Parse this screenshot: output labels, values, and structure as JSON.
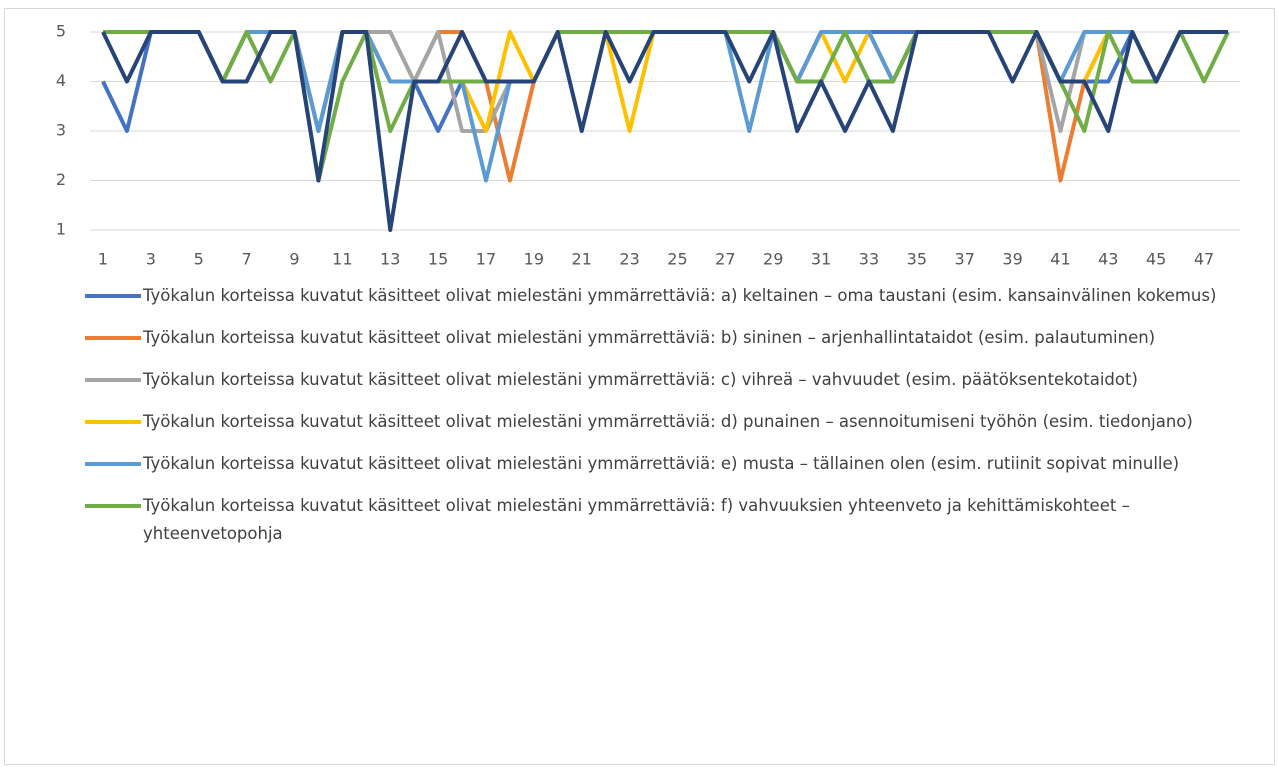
{
  "chart_data": {
    "type": "line",
    "x": [
      1,
      2,
      3,
      4,
      5,
      6,
      7,
      8,
      9,
      10,
      11,
      12,
      13,
      14,
      15,
      16,
      17,
      18,
      19,
      20,
      21,
      22,
      23,
      24,
      25,
      26,
      27,
      28,
      29,
      30,
      31,
      32,
      33,
      34,
      35,
      36,
      37,
      38,
      39,
      40,
      41,
      42,
      43,
      44,
      45,
      46,
      47,
      48
    ],
    "xlim": [
      1,
      48
    ],
    "xticks": [
      1,
      3,
      5,
      7,
      9,
      11,
      13,
      15,
      17,
      19,
      21,
      23,
      25,
      27,
      29,
      31,
      33,
      35,
      37,
      39,
      41,
      43,
      45,
      47
    ],
    "ylim": [
      1,
      5
    ],
    "yticks": [
      1,
      2,
      3,
      4,
      5
    ],
    "grid": true,
    "legend": "bottom",
    "series": [
      {
        "name": "Työkalun korteissa kuvatut käsitteet olivat mielestäni ymmärrettäviä: a) keltainen – oma taustani (esim. kansainvälinen kokemus)",
        "color": "#4472c4",
        "values": [
          4,
          3,
          5,
          5,
          5,
          4,
          4,
          5,
          5,
          3,
          5,
          5,
          4,
          4,
          3,
          4,
          4,
          4,
          4,
          5,
          5,
          5,
          5,
          5,
          5,
          5,
          5,
          5,
          5,
          4,
          5,
          5,
          5,
          5,
          5,
          5,
          5,
          5,
          5,
          5,
          4,
          4,
          4,
          5,
          4,
          5,
          5,
          5
        ]
      },
      {
        "name": "Työkalun korteissa kuvatut käsitteet olivat mielestäni ymmärrettäviä: b) sininen – arjenhallintataidot (esim. palautuminen)",
        "color": "#ed7d31",
        "values": [
          5,
          5,
          5,
          5,
          5,
          4,
          5,
          5,
          5,
          3,
          5,
          5,
          4,
          4,
          5,
          5,
          4,
          2,
          4,
          5,
          5,
          5,
          5,
          5,
          5,
          5,
          5,
          5,
          5,
          4,
          5,
          5,
          5,
          4,
          5,
          5,
          5,
          5,
          5,
          5,
          2,
          4,
          5,
          5,
          4,
          5,
          5,
          5
        ]
      },
      {
        "name": " Työkalun korteissa kuvatut käsitteet olivat mielestäni ymmärrettäviä: c) vihreä – vahvuudet (esim. päätöksentekotaidot)",
        "color": "#a5a5a5",
        "values": [
          5,
          5,
          5,
          5,
          5,
          4,
          5,
          5,
          5,
          3,
          5,
          5,
          5,
          4,
          5,
          3,
          3,
          4,
          4,
          5,
          5,
          5,
          5,
          5,
          5,
          5,
          5,
          5,
          5,
          4,
          5,
          5,
          5,
          4,
          5,
          5,
          5,
          5,
          5,
          5,
          3,
          5,
          5,
          5,
          4,
          5,
          5,
          5
        ]
      },
      {
        "name": "Työkalun korteissa kuvatut käsitteet olivat mielestäni ymmärrettäviä: d) punainen – asennoitumiseni työhön (esim. tiedonjano)",
        "color": "#ffc000",
        "values": [
          5,
          5,
          5,
          5,
          5,
          4,
          5,
          5,
          5,
          3,
          5,
          5,
          4,
          4,
          4,
          4,
          3,
          5,
          4,
          5,
          5,
          5,
          3,
          5,
          5,
          5,
          5,
          5,
          5,
          4,
          5,
          4,
          5,
          4,
          5,
          5,
          5,
          5,
          5,
          5,
          4,
          4,
          5,
          5,
          4,
          5,
          5,
          5
        ]
      },
      {
        "name": "Työkalun korteissa kuvatut käsitteet olivat mielestäni ymmärrettäviä: e) musta – tällainen olen (esim. rutiinit sopivat minulle)",
        "color": "#5b9bd5",
        "values": [
          5,
          5,
          5,
          5,
          5,
          4,
          5,
          5,
          5,
          3,
          5,
          5,
          4,
          4,
          4,
          4,
          2,
          4,
          4,
          5,
          5,
          5,
          5,
          5,
          5,
          5,
          5,
          3,
          5,
          4,
          5,
          5,
          5,
          4,
          5,
          5,
          5,
          5,
          5,
          5,
          4,
          5,
          5,
          5,
          4,
          5,
          5,
          5
        ]
      },
      {
        "name": "Työkalun korteissa kuvatut käsitteet olivat mielestäni ymmärrettäviä: f) vahvuuksien yhteenveto ja kehittämiskohteet – yhteenvetopohja",
        "color": "#70ad47",
        "values": [
          5,
          5,
          5,
          5,
          5,
          4,
          5,
          4,
          5,
          2,
          4,
          5,
          3,
          4,
          4,
          4,
          4,
          4,
          4,
          5,
          5,
          5,
          5,
          5,
          5,
          5,
          5,
          5,
          5,
          4,
          4,
          5,
          4,
          4,
          5,
          5,
          5,
          5,
          5,
          5,
          4,
          3,
          5,
          4,
          4,
          5,
          4,
          5
        ]
      },
      {
        "color": "#264478",
        "values": [
          5,
          4,
          5,
          5,
          5,
          4,
          4,
          5,
          5,
          2,
          5,
          5,
          1,
          4,
          4,
          5,
          4,
          4,
          4,
          5,
          3,
          5,
          4,
          5,
          5,
          5,
          5,
          4,
          5,
          3,
          4,
          3,
          4,
          3,
          5,
          5,
          5,
          5,
          4,
          5,
          4,
          4,
          3,
          5,
          4,
          5,
          5,
          5
        ]
      }
    ]
  }
}
